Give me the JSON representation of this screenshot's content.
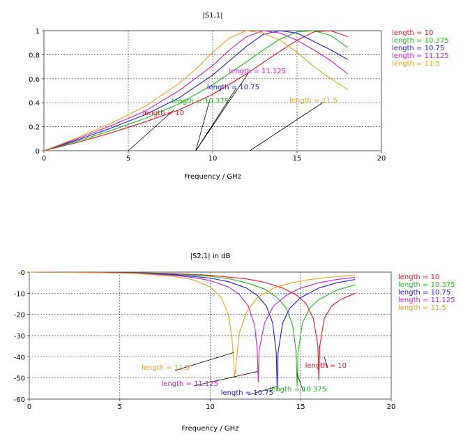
{
  "chart_data": [
    {
      "type": "line",
      "title": "|S1,1|",
      "xlabel": "Frequency / GHz",
      "ylabel": "",
      "xlim": [
        0,
        20
      ],
      "ylim": [
        0,
        1
      ],
      "x_ticks": [
        "0",
        "5",
        "10",
        "15",
        "20"
      ],
      "y_ticks": [
        "0",
        "0.2",
        "0.4",
        "0.6",
        "0.8",
        "1"
      ],
      "grid": true,
      "legend_position": "right",
      "series": [
        {
          "name": "length = 10",
          "color": "#e8141e",
          "annotation": "length = 10",
          "x": [
            0,
            2,
            4,
            6,
            8,
            10,
            12,
            14,
            15,
            16,
            17,
            18
          ],
          "y": [
            0,
            0.07,
            0.15,
            0.24,
            0.34,
            0.47,
            0.64,
            0.83,
            0.92,
            0.99,
            1.0,
            0.95
          ]
        },
        {
          "name": "length = 10.375",
          "color": "#1cbc1c",
          "annotation": "length = 10.375",
          "x": [
            0,
            2,
            4,
            6,
            8,
            10,
            12,
            13,
            14,
            15,
            16,
            17,
            18
          ],
          "y": [
            0,
            0.08,
            0.17,
            0.27,
            0.39,
            0.55,
            0.74,
            0.84,
            0.93,
            0.99,
            1.0,
            0.96,
            0.86
          ]
        },
        {
          "name": "length = 10.75",
          "color": "#1a1ae0",
          "annotation": "length = 10.75",
          "x": [
            0,
            2,
            4,
            6,
            8,
            10,
            11,
            12,
            13,
            14,
            15,
            16,
            17,
            18
          ],
          "y": [
            0,
            0.09,
            0.19,
            0.3,
            0.44,
            0.63,
            0.75,
            0.87,
            0.97,
            1.0,
            0.98,
            0.91,
            0.84,
            0.76
          ]
        },
        {
          "name": "length = 11.125",
          "color": "#c81ec8",
          "annotation": "length = 11.125",
          "x": [
            0,
            2,
            4,
            6,
            8,
            10,
            11,
            12,
            13,
            14,
            15,
            16,
            17,
            18
          ],
          "y": [
            0,
            0.1,
            0.21,
            0.33,
            0.5,
            0.71,
            0.84,
            0.95,
            1.0,
            0.98,
            0.92,
            0.84,
            0.75,
            0.64
          ]
        },
        {
          "name": "length = 11.5",
          "color": "#f0a01e",
          "annotation": "length = 11.5",
          "x": [
            0,
            2,
            4,
            6,
            8,
            9,
            10,
            11,
            12,
            13,
            14,
            15,
            16,
            17,
            18
          ],
          "y": [
            0,
            0.11,
            0.23,
            0.37,
            0.56,
            0.68,
            0.82,
            0.94,
            1.0,
            0.98,
            0.92,
            0.82,
            0.7,
            0.6,
            0.51
          ]
        }
      ]
    },
    {
      "type": "line",
      "title": "|S2,1| in dB",
      "xlabel": "Frequency / GHz",
      "ylabel": "",
      "xlim": [
        0,
        20
      ],
      "ylim": [
        -60,
        0
      ],
      "x_ticks": [
        "0",
        "5",
        "10",
        "15",
        "20"
      ],
      "y_ticks": [
        "-0",
        "-10",
        "-20",
        "-30",
        "-40",
        "-50",
        "-60"
      ],
      "grid": true,
      "legend_position": "right",
      "series": [
        {
          "name": "length = 10",
          "color": "#e8141e",
          "annotation": "length = 10",
          "x": [
            0,
            4,
            6,
            8,
            10,
            12,
            13,
            14,
            14.8,
            15.3,
            15.7,
            15.95,
            16.0,
            16.05,
            16.3,
            16.7,
            17.2,
            18
          ],
          "y": [
            0,
            -0.1,
            -0.3,
            -0.7,
            -1.5,
            -3.2,
            -4.8,
            -7.5,
            -11,
            -15,
            -22,
            -35,
            -51,
            -35,
            -22,
            -16,
            -13,
            -10
          ]
        },
        {
          "name": "length = 10.375",
          "color": "#1cbc1c",
          "annotation": "length = 10.375",
          "x": [
            0,
            4,
            6,
            8,
            10,
            11,
            12,
            13,
            13.7,
            14.2,
            14.55,
            14.75,
            14.8,
            14.85,
            15.1,
            15.5,
            16,
            17,
            18
          ],
          "y": [
            0,
            -0.15,
            -0.35,
            -0.9,
            -2.0,
            -3.1,
            -5,
            -8,
            -12,
            -17,
            -25,
            -38,
            -54,
            -38,
            -24,
            -17,
            -13,
            -8.5,
            -6
          ]
        },
        {
          "name": "length = 10.75",
          "color": "#1a1ae0",
          "annotation": "length = 10.75",
          "x": [
            0,
            4,
            6,
            8,
            10,
            11,
            12,
            12.6,
            13.1,
            13.45,
            13.65,
            13.7,
            13.75,
            14.0,
            14.4,
            15,
            16,
            17,
            18
          ],
          "y": [
            0,
            -0.2,
            -0.45,
            -1.2,
            -2.8,
            -4.5,
            -7.5,
            -11,
            -16,
            -24,
            -38,
            -56,
            -38,
            -24,
            -17,
            -12,
            -7.5,
            -5,
            -3.5
          ]
        },
        {
          "name": "length = 11.125",
          "color": "#c81ec8",
          "annotation": "length = 11.125",
          "x": [
            0,
            4,
            6,
            8,
            9,
            10,
            11,
            11.6,
            12.1,
            12.45,
            12.6,
            12.65,
            12.7,
            13.0,
            13.5,
            14.2,
            15,
            16,
            17,
            18
          ],
          "y": [
            0,
            -0.25,
            -0.55,
            -1.5,
            -2.5,
            -4,
            -7,
            -10.5,
            -16,
            -25,
            -37,
            -52,
            -37,
            -24,
            -16,
            -11,
            -7.5,
            -5,
            -3.5,
            -2.5
          ]
        },
        {
          "name": "length = 11.5",
          "color": "#f0a01e",
          "annotation": "length = 11.5",
          "x": [
            0,
            4,
            6,
            8,
            9,
            10,
            10.6,
            11.0,
            11.2,
            11.3,
            11.35,
            11.6,
            12.0,
            12.6,
            13.5,
            14.5,
            15.5,
            16.5,
            17.5,
            18
          ],
          "y": [
            0,
            -0.3,
            -0.7,
            -2,
            -3.5,
            -7,
            -12,
            -20,
            -31,
            -42,
            -50,
            -29,
            -19,
            -12,
            -7.5,
            -5,
            -3.5,
            -2.5,
            -1.7,
            -1.3
          ]
        }
      ]
    }
  ]
}
